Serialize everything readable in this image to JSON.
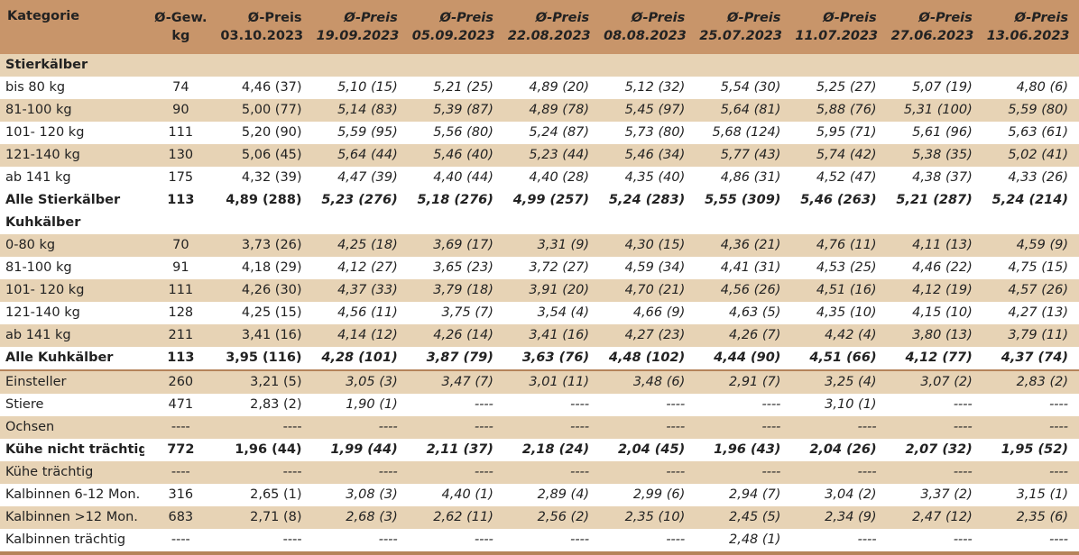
{
  "header": {
    "kategorie": "Kategorie",
    "gew_line1": "Ø-Gew.",
    "gew_line2": "kg",
    "preis_label": "Ø-Preis",
    "dates": [
      "03.10.2023",
      "19.09.2023",
      "05.09.2023",
      "22.08.2023",
      "08.08.2023",
      "25.07.2023",
      "11.07.2023",
      "27.06.2023",
      "13.06.2023"
    ]
  },
  "rows": [
    {
      "type": "sec",
      "label": "Stierkälber",
      "gew": "",
      "prices": [
        "",
        "",
        "",
        "",
        "",
        "",
        "",
        "",
        ""
      ]
    },
    {
      "type": "even",
      "label": "bis 80 kg",
      "gew": "74",
      "prices": [
        "4,46 (37)",
        "5,10 (15)",
        "5,21 (25)",
        "4,89 (20)",
        "5,12 (32)",
        "5,54 (30)",
        "5,25 (27)",
        "5,07 (19)",
        "4,80 (6)"
      ]
    },
    {
      "type": "odd",
      "label": "81-100 kg",
      "gew": "90",
      "prices": [
        "5,00 (77)",
        "5,14 (83)",
        "5,39 (87)",
        "4,89 (78)",
        "5,45 (97)",
        "5,64 (81)",
        "5,88 (76)",
        "5,31 (100)",
        "5,59 (80)"
      ]
    },
    {
      "type": "even",
      "label": "101- 120 kg",
      "gew": "111",
      "prices": [
        "5,20 (90)",
        "5,59 (95)",
        "5,56 (80)",
        "5,24 (87)",
        "5,73 (80)",
        "5,68 (124)",
        "5,95 (71)",
        "5,61 (96)",
        "5,63 (61)"
      ]
    },
    {
      "type": "odd",
      "label": "121-140 kg",
      "gew": "130",
      "prices": [
        "5,06 (45)",
        "5,64 (44)",
        "5,46 (40)",
        "5,23 (44)",
        "5,46 (34)",
        "5,77 (43)",
        "5,74 (42)",
        "5,38 (35)",
        "5,02 (41)"
      ]
    },
    {
      "type": "even",
      "label": "ab 141 kg",
      "gew": "175",
      "prices": [
        "4,32 (39)",
        "4,47 (39)",
        "4,40 (44)",
        "4,40 (28)",
        "4,35 (40)",
        "4,86 (31)",
        "4,52 (47)",
        "4,38 (37)",
        "4,33 (26)"
      ]
    },
    {
      "type": "odd tot",
      "label": "Alle Stierkälber",
      "gew": "113",
      "prices": [
        "4,89 (288)",
        "5,23 (276)",
        "5,18 (276)",
        "4,99 (257)",
        "5,24 (283)",
        "5,55 (309)",
        "5,46 (263)",
        "5,21 (287)",
        "5,24 (214)"
      ]
    },
    {
      "type": "even sec2",
      "label": "Kuhkälber",
      "gew": "",
      "prices": [
        "",
        "",
        "",
        "",
        "",
        "",
        "",
        "",
        ""
      ]
    },
    {
      "type": "odd",
      "label": "0-80 kg",
      "gew": "70",
      "prices": [
        "3,73 (26)",
        "4,25 (18)",
        "3,69 (17)",
        "3,31 (9)",
        "4,30 (15)",
        "4,36 (21)",
        "4,76 (11)",
        "4,11 (13)",
        "4,59 (9)"
      ]
    },
    {
      "type": "even",
      "label": "81-100 kg",
      "gew": "91",
      "prices": [
        "4,18 (29)",
        "4,12 (27)",
        "3,65 (23)",
        "3,72 (27)",
        "4,59 (34)",
        "4,41 (31)",
        "4,53 (25)",
        "4,46 (22)",
        "4,75 (15)"
      ]
    },
    {
      "type": "odd",
      "label": "101- 120 kg",
      "gew": "111",
      "prices": [
        "4,26 (30)",
        "4,37 (33)",
        "3,79 (18)",
        "3,91 (20)",
        "4,70 (21)",
        "4,56 (26)",
        "4,51 (16)",
        "4,12 (19)",
        "4,57 (26)"
      ]
    },
    {
      "type": "even",
      "label": "121-140 kg",
      "gew": "128",
      "prices": [
        "4,25 (15)",
        "4,56 (11)",
        "3,75 (7)",
        "3,54 (4)",
        "4,66 (9)",
        "4,63 (5)",
        "4,35 (10)",
        "4,15 (10)",
        "4,27 (13)"
      ]
    },
    {
      "type": "odd",
      "label": "ab 141 kg",
      "gew": "211",
      "prices": [
        "3,41 (16)",
        "4,14 (12)",
        "4,26 (14)",
        "3,41 (16)",
        "4,27 (23)",
        "4,26 (7)",
        "4,42 (4)",
        "3,80 (13)",
        "3,79 (11)"
      ]
    },
    {
      "type": "even tot",
      "label": "Alle Kuhkälber",
      "gew": "113",
      "prices": [
        "3,95 (116)",
        "4,28 (101)",
        "3,87 (79)",
        "3,63 (76)",
        "4,48 (102)",
        "4,44 (90)",
        "4,51 (66)",
        "4,12 (77)",
        "4,37 (74)"
      ]
    },
    {
      "type": "odd sep",
      "label": "Einsteller",
      "gew": "260",
      "prices": [
        "3,21 (5)",
        "3,05 (3)",
        "3,47 (7)",
        "3,01 (11)",
        "3,48 (6)",
        "2,91 (7)",
        "3,25 (4)",
        "3,07 (2)",
        "2,83 (2)"
      ]
    },
    {
      "type": "even",
      "label": "Stiere",
      "gew": "471",
      "prices": [
        "2,83 (2)",
        "1,90 (1)",
        "----",
        "----",
        "----",
        "----",
        "3,10 (1)",
        "----",
        "----"
      ]
    },
    {
      "type": "odd",
      "label": "Ochsen",
      "gew": "----",
      "prices": [
        "----",
        "----",
        "----",
        "----",
        "----",
        "----",
        "----",
        "----",
        "----"
      ]
    },
    {
      "type": "even tot",
      "label": "Kühe nicht trächtig",
      "gew": "772",
      "prices": [
        "1,96 (44)",
        "1,99 (44)",
        "2,11 (37)",
        "2,18 (24)",
        "2,04 (45)",
        "1,96 (43)",
        "2,04 (26)",
        "2,07 (32)",
        "1,95 (52)"
      ]
    },
    {
      "type": "odd",
      "label": "Kühe trächtig",
      "gew": "----",
      "prices": [
        "----",
        "----",
        "----",
        "----",
        "----",
        "----",
        "----",
        "----",
        "----"
      ]
    },
    {
      "type": "even",
      "label": "Kalbinnen 6-12 Mon.",
      "gew": "316",
      "prices": [
        "2,65 (1)",
        "3,08 (3)",
        "4,40 (1)",
        "2,89 (4)",
        "2,99 (6)",
        "2,94 (7)",
        "3,04 (2)",
        "3,37 (2)",
        "3,15 (1)"
      ]
    },
    {
      "type": "odd",
      "label": "Kalbinnen >12 Mon.",
      "gew": "683",
      "prices": [
        "2,71 (8)",
        "2,68 (3)",
        "2,62 (11)",
        "2,56 (2)",
        "2,35 (10)",
        "2,45 (5)",
        "2,34 (9)",
        "2,47 (12)",
        "2,35 (6)"
      ]
    },
    {
      "type": "even lastrow",
      "label": "Kalbinnen trächtig",
      "gew": "----",
      "prices": [
        "----",
        "----",
        "----",
        "----",
        "----",
        "2,48 (1)",
        "----",
        "----",
        "----"
      ]
    }
  ]
}
